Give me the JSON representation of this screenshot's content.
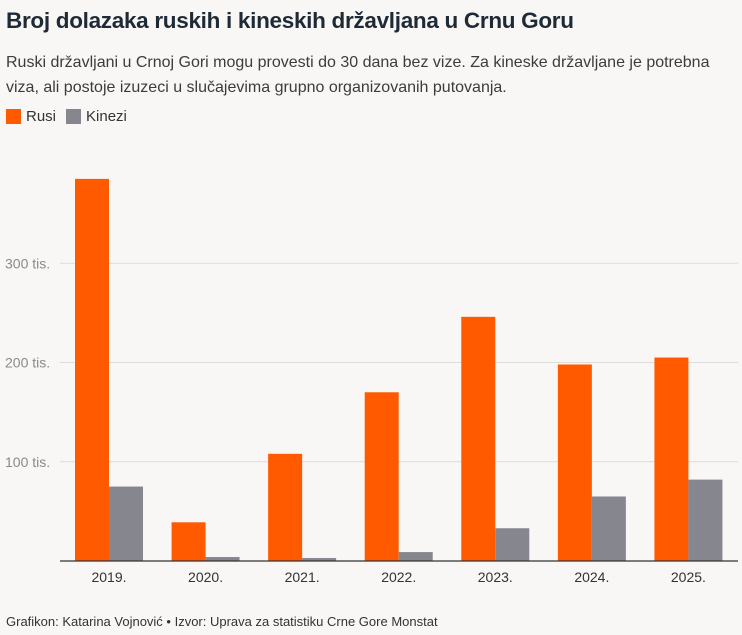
{
  "header": {
    "title": "Broj dolazaka ruskih i kineskih državljana u Crnu Goru",
    "subtitle": "Ruski državljani u Crnoj Gori mogu provesti do 30 dana bez vize. Za kineske državljane je potrebna viza, ali postoje izuzeci u slučajevima grupno organizovanih putovanja."
  },
  "footer": {
    "credit": "Grafikon: Katarina Vojnović • Izvor: Uprava za statistiku Crne Gore Monstat"
  },
  "chart_data": {
    "type": "bar",
    "categories": [
      "2019.",
      "2020.",
      "2021.",
      "2022.",
      "2023.",
      "2024.",
      "2025."
    ],
    "series": [
      {
        "name": "Rusi",
        "color": "#ff5a00",
        "values": [
          385000,
          39000,
          108000,
          170000,
          246000,
          198000,
          205000
        ]
      },
      {
        "name": "Kinezi",
        "color": "#86868e",
        "values": [
          75000,
          4000,
          3000,
          9000,
          33000,
          65000,
          82000
        ]
      }
    ],
    "ylim": [
      0,
      400000
    ],
    "yticks": [
      100000,
      200000,
      300000
    ],
    "ytick_labels": [
      "100 tis.",
      "200 tis.",
      "300 tis."
    ],
    "grid": true,
    "legend": "top-left"
  }
}
